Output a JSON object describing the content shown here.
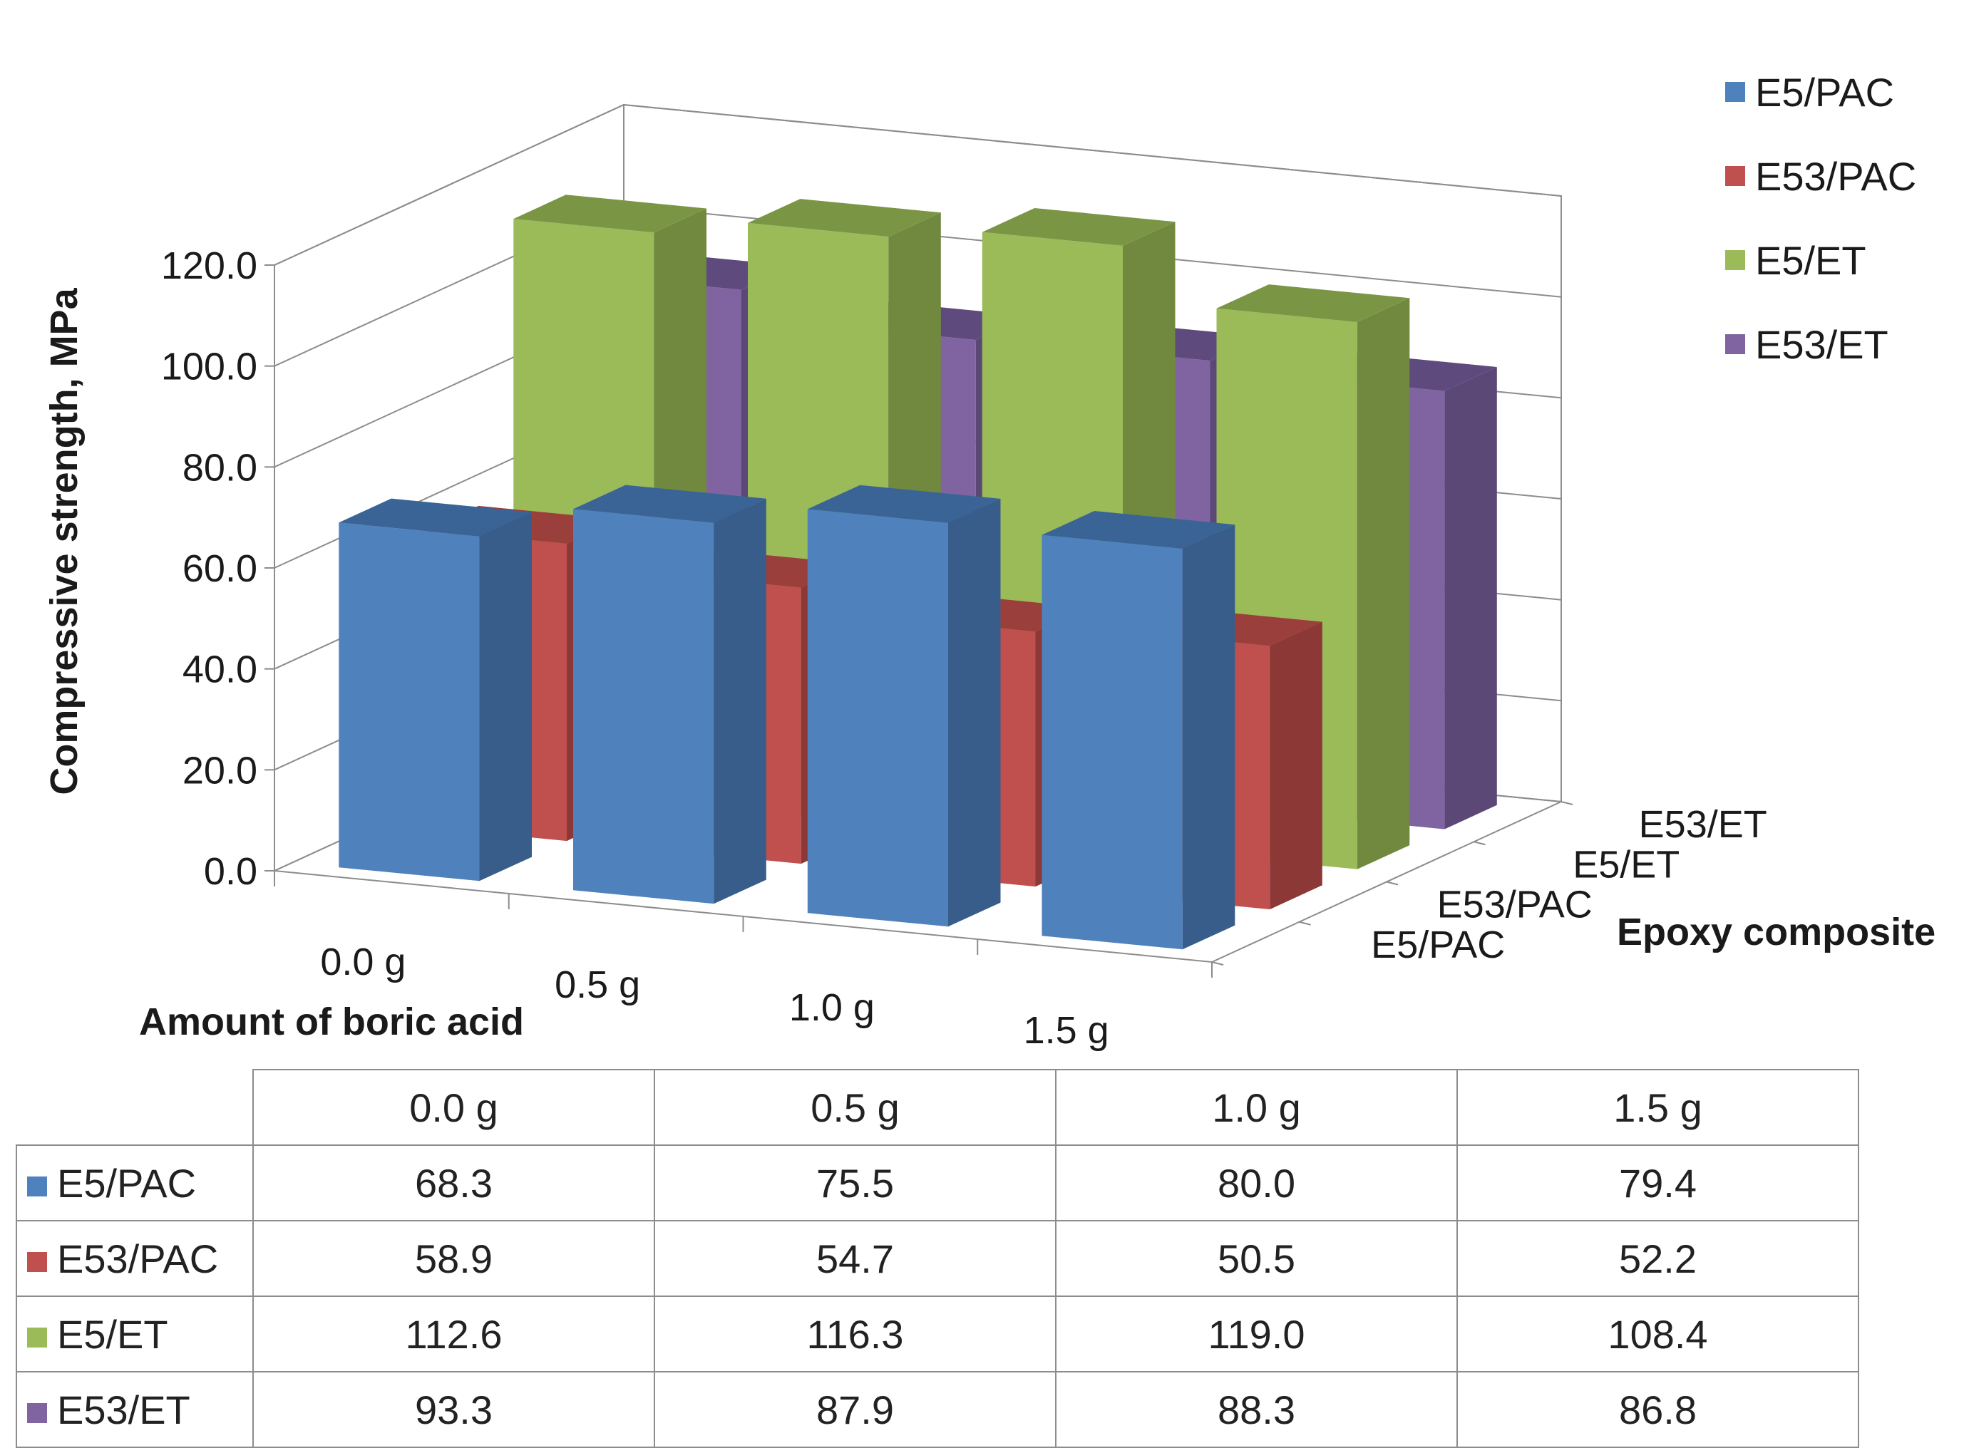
{
  "chart_data": {
    "type": "bar",
    "projection": "3d-column",
    "categories": [
      "0.0 g",
      "0.5 g",
      "1.0 g",
      "1.5 g"
    ],
    "series": [
      {
        "name": "E5/PAC",
        "values": [
          68.3,
          75.5,
          80.0,
          79.4
        ],
        "color": "#4f81bd",
        "side_color": "#385d8a",
        "top_color": "#3a6495"
      },
      {
        "name": "E53/PAC",
        "values": [
          58.9,
          54.7,
          50.5,
          52.2
        ],
        "color": "#c0504d",
        "side_color": "#8c3836",
        "top_color": "#9b3f3c"
      },
      {
        "name": "E5/ET",
        "values": [
          112.6,
          116.3,
          119.0,
          108.4
        ],
        "color": "#9bbb59",
        "side_color": "#71893f",
        "top_color": "#7a9645"
      },
      {
        "name": "E53/ET",
        "values": [
          93.3,
          87.9,
          88.3,
          86.8
        ],
        "color": "#8064a2",
        "side_color": "#5c4876",
        "top_color": "#5f4a7d"
      }
    ],
    "ylabel": "Compressive strength, MPa",
    "xlabel": "Amount of boric acid",
    "zlabel": "Epoxy composite",
    "ylim": [
      0,
      120
    ],
    "yticks": [
      "0.0",
      "20.0",
      "40.0",
      "60.0",
      "80.0",
      "100.0",
      "120.0"
    ],
    "legend_position": "top-right",
    "grid": true
  },
  "table": {
    "header": [
      "0.0 g",
      "0.5 g",
      "1.0 g",
      "1.5 g"
    ],
    "rows": [
      {
        "label": "E5/PAC",
        "values": [
          "68.3",
          "75.5",
          "80.0",
          "79.4"
        ]
      },
      {
        "label": "E53/PAC",
        "values": [
          "58.9",
          "54.7",
          "50.5",
          "52.2"
        ]
      },
      {
        "label": "E5/ET",
        "values": [
          "112.6",
          "116.3",
          "119.0",
          "108.4"
        ]
      },
      {
        "label": "E53/ET",
        "values": [
          "93.3",
          "87.9",
          "88.3",
          "86.8"
        ]
      }
    ]
  }
}
